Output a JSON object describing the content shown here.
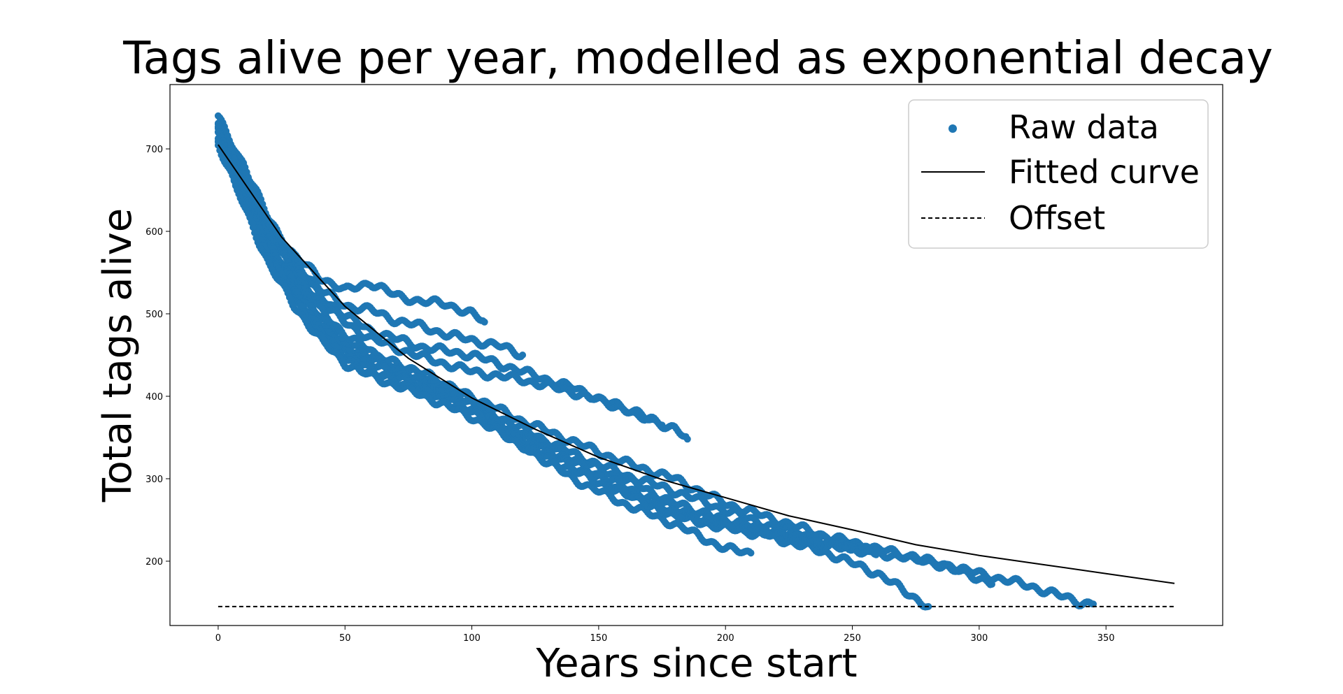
{
  "chart_data": {
    "type": "scatter",
    "title": "Tags alive per year, modelled as exponential decay",
    "xlabel": "Years since start",
    "ylabel": "Total tags alive",
    "xlim": [
      -19,
      396
    ],
    "ylim": [
      122,
      778
    ],
    "x_ticks": [
      0,
      50,
      100,
      150,
      200,
      250,
      300,
      350
    ],
    "y_ticks": [
      200,
      300,
      400,
      500,
      600,
      700
    ],
    "grid": false,
    "legend_position": "top-right",
    "colors": {
      "raw": "#1f77b4",
      "fit": "#000000",
      "offset": "#000000"
    },
    "series": [
      {
        "name": "Raw data",
        "kind": "scatter",
        "trajectories": [
          {
            "x": [
              0,
              10,
              20,
              30,
              40,
              50,
              60,
              70,
              80,
              90,
              100,
              105
            ],
            "y": [
              738,
              680,
              615,
              570,
              545,
              528,
              538,
              522,
              515,
              512,
              500,
              490
            ]
          },
          {
            "x": [
              0,
              10,
              20,
              30,
              40,
              50,
              60,
              70,
              80,
              90,
              100,
              110,
              120
            ],
            "y": [
              735,
              678,
              610,
              565,
              530,
              510,
              505,
              492,
              485,
              475,
              468,
              462,
              450
            ]
          },
          {
            "x": [
              0,
              10,
              20,
              30,
              40,
              50,
              60,
              70,
              80,
              90,
              100,
              120,
              140,
              160,
              175
            ],
            "y": [
              732,
              672,
              605,
              560,
              522,
              498,
              480,
              470,
              460,
              455,
              450,
              430,
              410,
              385,
              365
            ]
          },
          {
            "x": [
              0,
              10,
              20,
              30,
              40,
              50,
              60,
              80,
              100,
              120,
              140,
              160,
              180,
              185
            ],
            "y": [
              728,
              668,
              600,
              553,
              515,
              490,
              470,
              448,
              430,
              420,
              405,
              385,
              360,
              348
            ]
          },
          {
            "x": [
              0,
              10,
              20,
              30,
              40,
              50,
              60,
              70,
              80,
              90,
              95
            ],
            "y": [
              725,
              660,
              595,
              550,
              505,
              475,
              455,
              430,
              410,
              400,
              395
            ]
          },
          {
            "x": [
              0,
              10,
              20,
              30,
              40,
              50,
              60,
              80,
              100,
              120,
              140,
              160,
              180,
              200,
              210
            ],
            "y": [
              722,
              655,
              590,
              540,
              498,
              468,
              450,
              430,
              395,
              340,
              300,
              270,
              245,
              215,
              210
            ]
          },
          {
            "x": [
              0,
              10,
              20,
              30,
              40,
              50,
              60,
              80,
              100,
              120,
              140,
              160,
              180,
              200,
              220,
              240,
              260,
              280,
              300,
              320,
              340,
              345
            ],
            "y": [
              720,
              650,
              585,
              535,
              495,
              462,
              445,
              425,
              400,
              370,
              345,
              320,
              300,
              270,
              250,
              230,
              215,
              200,
              185,
              170,
              150,
              148
            ]
          },
          {
            "x": [
              0,
              10,
              20,
              30,
              40,
              50,
              60,
              80,
              100,
              120,
              140,
              160,
              180,
              200,
              220,
              240,
              260,
              280,
              300,
              305
            ],
            "y": [
              718,
              648,
              580,
              530,
              490,
              458,
              440,
              420,
              392,
              360,
              330,
              305,
              285,
              262,
              240,
              225,
              210,
              200,
              180,
              172
            ]
          },
          {
            "x": [
              0,
              10,
              20,
              30,
              40,
              50,
              60,
              80,
              100,
              120,
              140,
              160,
              180,
              200,
              220,
              240,
              260,
              270,
              280
            ],
            "y": [
              715,
              645,
              575,
              525,
              485,
              455,
              438,
              418,
              390,
              355,
              325,
              300,
              270,
              248,
              228,
              210,
              185,
              165,
              145
            ]
          },
          {
            "x": [
              0,
              10,
              20,
              30,
              40,
              50,
              60,
              80,
              100,
              120,
              140,
              160,
              180,
              200,
              220,
              240,
              250
            ],
            "y": [
              712,
              640,
              570,
              520,
              480,
              450,
              432,
              412,
              385,
              350,
              320,
              290,
              265,
              250,
              235,
              220,
              215
            ]
          },
          {
            "x": [
              0,
              10,
              20,
              30,
              40,
              50,
              60,
              80,
              100,
              120,
              140,
              160,
              180,
              200,
              220,
              240,
              260
            ],
            "y": [
              710,
              636,
              565,
              515,
              475,
              445,
              428,
              408,
              380,
              345,
              315,
              285,
              255,
              240,
              230,
              222,
              212
            ]
          },
          {
            "x": [
              0,
              10,
              20,
              30,
              40,
              50,
              60,
              80,
              100,
              120,
              140,
              160,
              180,
              200,
              220,
              240,
              260
            ],
            "y": [
              706,
              632,
              560,
              510,
              470,
              440,
              425,
              402,
              375,
              340,
              310,
              282,
              258,
              245,
              235,
              220,
              210
            ]
          }
        ]
      },
      {
        "name": "Fitted curve",
        "kind": "line",
        "model": "exponential_decay",
        "x": [
          0,
          25,
          50,
          75,
          100,
          125,
          150,
          175,
          200,
          225,
          250,
          275,
          300,
          325,
          350,
          377
        ],
        "y": [
          705,
          593,
          509,
          446,
          398,
          360,
          326,
          299,
          277,
          255,
          238,
          220,
          207,
          196,
          185,
          173
        ]
      },
      {
        "name": "Offset",
        "kind": "line",
        "style": "dashed",
        "x": [
          0,
          377
        ],
        "y": [
          145,
          145
        ]
      }
    ]
  }
}
